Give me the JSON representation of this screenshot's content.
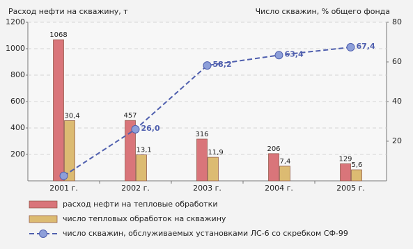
{
  "chart_data": {
    "type": "bar",
    "y_label": "Расход нефти на скважину, т",
    "y2_label": "Число скважин, % общего фонда",
    "categories": [
      "2001 г.",
      "2002 г.",
      "2003 г.",
      "2004 г.",
      "2005 г."
    ],
    "series": [
      {
        "name": "расход нефти на тепловые обработки",
        "color": "#d9757a",
        "values": [
          1068,
          457,
          316,
          206,
          129
        ]
      },
      {
        "name": "число тепловых обработок на скважину",
        "color": "#dcbb72",
        "axis": "y2",
        "values": [
          30.4,
          13.1,
          11.9,
          7.4,
          5.6
        ],
        "value_labels": [
          "30,4",
          "13,1",
          "11,9",
          "7,4",
          "5,6"
        ]
      },
      {
        "name": "число скважин, обслуживаемых установками ЛС-6 со скребком СФ-99",
        "color": "#4f5fae",
        "axis": "y2",
        "type": "line",
        "values": [
          2.5,
          26.0,
          58.2,
          63.4,
          67.4
        ],
        "value_labels": [
          null,
          "26,0",
          "58,2",
          "63,4",
          "67,4"
        ]
      }
    ],
    "ylim": [
      0,
      1200
    ],
    "yticks": [
      200,
      400,
      600,
      800,
      1000,
      1200
    ],
    "y2lim": [
      0,
      80
    ],
    "y2ticks": [
      20,
      40,
      60,
      80
    ],
    "grid": true
  }
}
